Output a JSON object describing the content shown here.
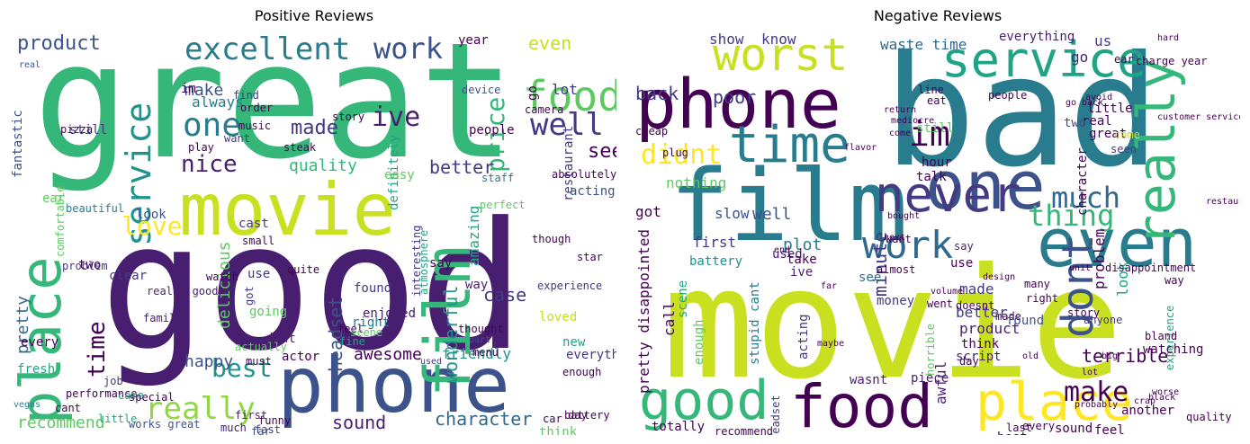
{
  "positive": {
    "title": "Positive Reviews",
    "words": [
      "good",
      "great",
      "movie",
      "phone",
      "film",
      "place",
      "food",
      "service",
      "excellent",
      "product",
      "work",
      "well",
      "one",
      "nice",
      "love",
      "really",
      "best",
      "made",
      "quality",
      "price",
      "time",
      "better",
      "see",
      "ive",
      "make",
      "delicious",
      "headset",
      "character",
      "recommend",
      "wonderful",
      "amazing",
      "case",
      "sound",
      "pretty",
      "happy",
      "awesome",
      "friendly",
      "even",
      "year",
      "lot",
      "go",
      "still",
      "im",
      "restaurant",
      "definitely",
      "always",
      "comfortable",
      "fantastic",
      "people",
      "right",
      "everything",
      "way",
      "loved",
      "new",
      "actor",
      "every",
      "two",
      "look",
      "dont",
      "cant",
      "fresh",
      "staff",
      "perfect",
      "acting",
      "easy",
      "ear",
      "say",
      "enjoyed",
      "experience",
      "cast",
      "small",
      "clear",
      "feel",
      "found",
      "going",
      "use",
      "quite",
      "fine",
      "think",
      "day",
      "little",
      "funny",
      "first",
      "far",
      "much",
      "enough",
      "vegas",
      "job",
      "family",
      "pizza",
      "steak",
      "music",
      "story",
      "order",
      "find",
      "device",
      "really good",
      "beautiful",
      "problem",
      "performance",
      "interesting",
      "atmosphere",
      "must",
      "actually",
      "got",
      "watch",
      "scene",
      "thought",
      "part",
      "menu",
      "camera",
      "play",
      "want",
      "absolutely",
      "though",
      "used",
      "star",
      "battery",
      "works great",
      "came",
      "special",
      "fast",
      "car",
      "real",
      "highly recommend"
    ],
    "colors": [
      "#440154",
      "#481f70",
      "#443983",
      "#3b528b",
      "#31688e",
      "#287c8e",
      "#21918c",
      "#20a486",
      "#35b779",
      "#5ec962",
      "#90d743",
      "#c8e020",
      "#fde725"
    ]
  },
  "negative": {
    "title": "Negative Reviews",
    "words": [
      "bad",
      "movie",
      "phone",
      "film",
      "worst",
      "service",
      "one",
      "time",
      "even",
      "never",
      "food",
      "good",
      "place",
      "really",
      "dont",
      "im",
      "didnt",
      "work",
      "much",
      "thing",
      "make",
      "poor",
      "waste time",
      "back",
      "know",
      "show",
      "everything",
      "us",
      "go",
      "nothing",
      "got",
      "slow",
      "plot",
      "well",
      "first",
      "battery",
      "used",
      "take",
      "ive",
      "minute",
      "call",
      "enough",
      "acting",
      "see",
      "money",
      "made",
      "better",
      "product",
      "think",
      "doesnt",
      "script",
      "awful",
      "piece",
      "wasnt",
      "horrible",
      "headset",
      "stupid cant",
      "pretty disappointed",
      "scene",
      "totally",
      "recommend",
      "terrible",
      "problem",
      "look",
      "character",
      "great",
      "real",
      "little",
      "came",
      "seen",
      "hour",
      "talk",
      "still",
      "want",
      "say",
      "use",
      "way",
      "ear",
      "two",
      "experience",
      "disappointment",
      "anyone",
      "story",
      "made",
      "many",
      "right",
      "found",
      "went",
      "feel",
      "quality",
      "last",
      "every",
      "sound",
      "best",
      "another",
      "watching",
      "bland",
      "plug",
      "cheap",
      "eat",
      "line",
      "charge year",
      "hard",
      "almost",
      "people",
      "day",
      "mediocre",
      "return",
      "volume",
      "come",
      "go back",
      "avoid",
      "customer service",
      "restaurant",
      "next",
      "end",
      "flavor",
      "bought",
      "design",
      "unit",
      "worse",
      "crap",
      "black",
      "big",
      "old",
      "far",
      "probably",
      "lot",
      "maybe"
    ],
    "colors": [
      "#440154",
      "#481f70",
      "#443983",
      "#3b528b",
      "#31688e",
      "#287c8e",
      "#21918c",
      "#20a486",
      "#35b779",
      "#5ec962",
      "#90d743",
      "#c8e020",
      "#fde725"
    ]
  }
}
